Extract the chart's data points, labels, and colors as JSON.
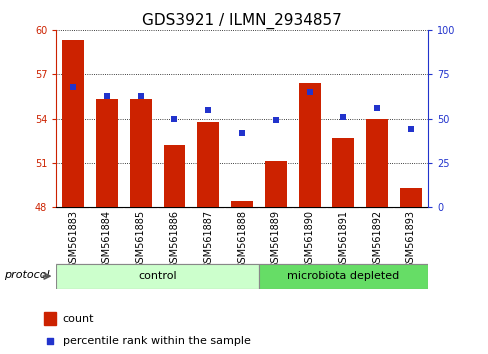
{
  "title": "GDS3921 / ILMN_2934857",
  "samples": [
    "GSM561883",
    "GSM561884",
    "GSM561885",
    "GSM561886",
    "GSM561887",
    "GSM561888",
    "GSM561889",
    "GSM561890",
    "GSM561891",
    "GSM561892",
    "GSM561893"
  ],
  "count_values": [
    59.3,
    55.3,
    55.3,
    52.2,
    53.8,
    48.4,
    51.1,
    56.4,
    52.7,
    54.0,
    49.3
  ],
  "percentile_values": [
    68,
    63,
    63,
    50,
    55,
    42,
    49,
    65,
    51,
    56,
    44
  ],
  "ylim_left": [
    48,
    60
  ],
  "ylim_right": [
    0,
    100
  ],
  "yticks_left": [
    48,
    51,
    54,
    57,
    60
  ],
  "yticks_right": [
    0,
    25,
    50,
    75,
    100
  ],
  "bar_color": "#cc2200",
  "dot_color": "#2233cc",
  "bar_width": 0.65,
  "n_control": 6,
  "n_microbiota": 5,
  "control_label": "control",
  "microbiota_label": "microbiota depleted",
  "protocol_label": "protocol",
  "legend_count": "count",
  "legend_percentile": "percentile rank within the sample",
  "bg_color": "#ffffff",
  "control_color": "#ccffcc",
  "microbiota_color": "#66dd66",
  "title_fontsize": 11,
  "tick_fontsize": 7,
  "label_fontsize": 8,
  "cell_bg": "#d0d0d0",
  "cell_border": "#ffffff"
}
